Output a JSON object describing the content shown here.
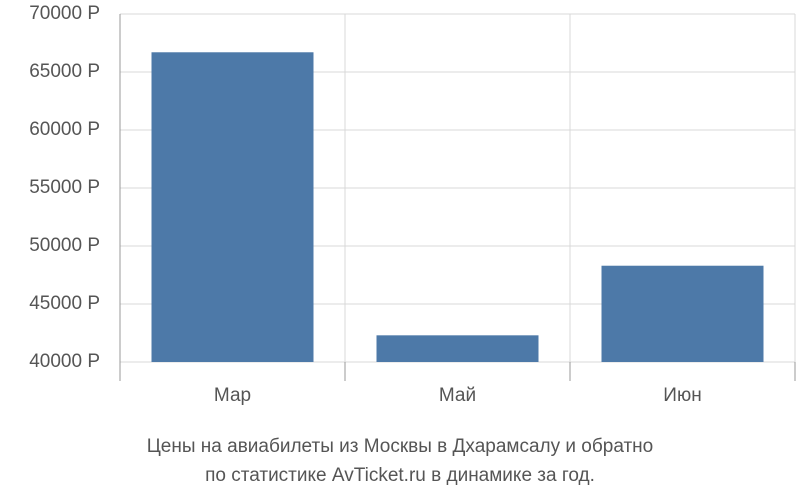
{
  "chart_data": {
    "type": "bar",
    "title": [
      "Цены на авиабилеты из Москвы в Дхарамсалу и обратно",
      "по статистике AvTicket.ru в динамике за год."
    ],
    "categories": [
      "Мар",
      "Май",
      "Июн"
    ],
    "values": [
      66700,
      42300,
      48300
    ],
    "color": "#4d79a8",
    "ylim": [
      40000,
      70000
    ],
    "yticks": [
      {
        "value": 40000,
        "label": "40000 Р"
      },
      {
        "value": 45000,
        "label": "45000 Р"
      },
      {
        "value": 50000,
        "label": "50000 Р"
      },
      {
        "value": 55000,
        "label": "55000 Р"
      },
      {
        "value": 60000,
        "label": "60000 Р"
      },
      {
        "value": 65000,
        "label": "65000 Р"
      },
      {
        "value": 70000,
        "label": "70000 Р"
      }
    ],
    "grid": true
  }
}
